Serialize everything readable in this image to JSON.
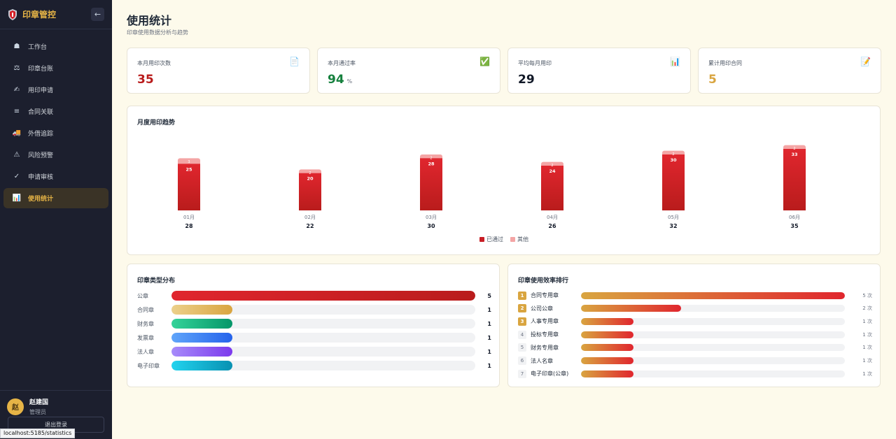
{
  "sidebar": {
    "brand": "印章管控",
    "collapse_icon": "arrow-left-icon",
    "items": [
      {
        "label": "工作台",
        "icon": "bell-icon",
        "glyph": "☗",
        "active": false
      },
      {
        "label": "印章台账",
        "icon": "scale-icon",
        "glyph": "⚖",
        "active": false
      },
      {
        "label": "用印申请",
        "icon": "hand-icon",
        "glyph": "✍",
        "active": false
      },
      {
        "label": "合同关联",
        "icon": "list-icon",
        "glyph": "≡",
        "active": false
      },
      {
        "label": "外借追踪",
        "icon": "truck-icon",
        "glyph": "🚚",
        "active": false
      },
      {
        "label": "风险预警",
        "icon": "warning-icon",
        "glyph": "⚠",
        "active": false
      },
      {
        "label": "申请审核",
        "icon": "check-icon",
        "glyph": "✓",
        "active": false
      },
      {
        "label": "使用统计",
        "icon": "bar-chart-icon",
        "glyph": "📊",
        "active": true
      }
    ],
    "user": {
      "avatar": "赵",
      "name": "赵建国",
      "role": "管理员"
    },
    "logout_label": "退出登录"
  },
  "statusbar": {
    "url": "localhost:5185/statistics"
  },
  "page": {
    "title": "使用统计",
    "subtitle": "印章使用数据分析与趋势"
  },
  "stats": [
    {
      "label": "本月用印次数",
      "value": "35",
      "unit": "",
      "color": "#b91c1c",
      "icon": "document-icon",
      "glyph": "📄"
    },
    {
      "label": "本月通过率",
      "value": "94",
      "unit": "%",
      "color": "#15803d",
      "icon": "check-box-icon",
      "glyph": "✅"
    },
    {
      "label": "平均每月用印",
      "value": "29",
      "unit": "",
      "color": "#111827",
      "icon": "bar-chart-icon",
      "glyph": "📊"
    },
    {
      "label": "累计用印合同",
      "value": "5",
      "unit": "",
      "color": "#d9a540",
      "icon": "memo-icon",
      "glyph": "📝"
    }
  ],
  "trend": {
    "title": "月度用印趋势",
    "legend": [
      "已通过",
      "其他"
    ]
  },
  "chart_data": {
    "type": "bar",
    "stacked": true,
    "categories": [
      "01月",
      "02月",
      "03月",
      "04月",
      "05月",
      "06月"
    ],
    "series": [
      {
        "name": "已通过",
        "values": [
          25,
          20,
          28,
          24,
          30,
          33
        ],
        "color": "#d42027"
      },
      {
        "name": "其他",
        "values": [
          3,
          2,
          2,
          2,
          2,
          2
        ],
        "color": "#f4a5a5"
      }
    ],
    "totals": [
      28,
      22,
      30,
      26,
      32,
      35
    ],
    "legend_position": "bottom-center",
    "grid": false
  },
  "distribution": {
    "title": "印章类型分布",
    "max": 5,
    "items": [
      {
        "label": "公章",
        "value": 5,
        "gradient": [
          "#e0262e",
          "#b91c1c"
        ]
      },
      {
        "label": "合同章",
        "value": 1,
        "gradient": [
          "#ecd08a",
          "#d9a540"
        ]
      },
      {
        "label": "财务章",
        "value": 1,
        "gradient": [
          "#34d399",
          "#059669"
        ]
      },
      {
        "label": "发票章",
        "value": 1,
        "gradient": [
          "#60a5fa",
          "#2563eb"
        ]
      },
      {
        "label": "法人章",
        "value": 1,
        "gradient": [
          "#a78bfa",
          "#7c3aed"
        ]
      },
      {
        "label": "电子印章",
        "value": 1,
        "gradient": [
          "#22d3ee",
          "#0891b2"
        ]
      }
    ]
  },
  "ranking": {
    "title": "印章使用效率排行",
    "max": 5,
    "unit": "次",
    "items": [
      {
        "rank": "1",
        "name": "合同专用章",
        "value": 5
      },
      {
        "rank": "2",
        "name": "公司公章",
        "value": 2
      },
      {
        "rank": "3",
        "name": "人事专用章",
        "value": 1
      },
      {
        "rank": "4",
        "name": "投标专用章",
        "value": 1
      },
      {
        "rank": "5",
        "name": "财务专用章",
        "value": 1
      },
      {
        "rank": "6",
        "name": "法人名章",
        "value": 1
      },
      {
        "rank": "7",
        "name": "电子印章(公章)",
        "value": 1
      }
    ]
  }
}
